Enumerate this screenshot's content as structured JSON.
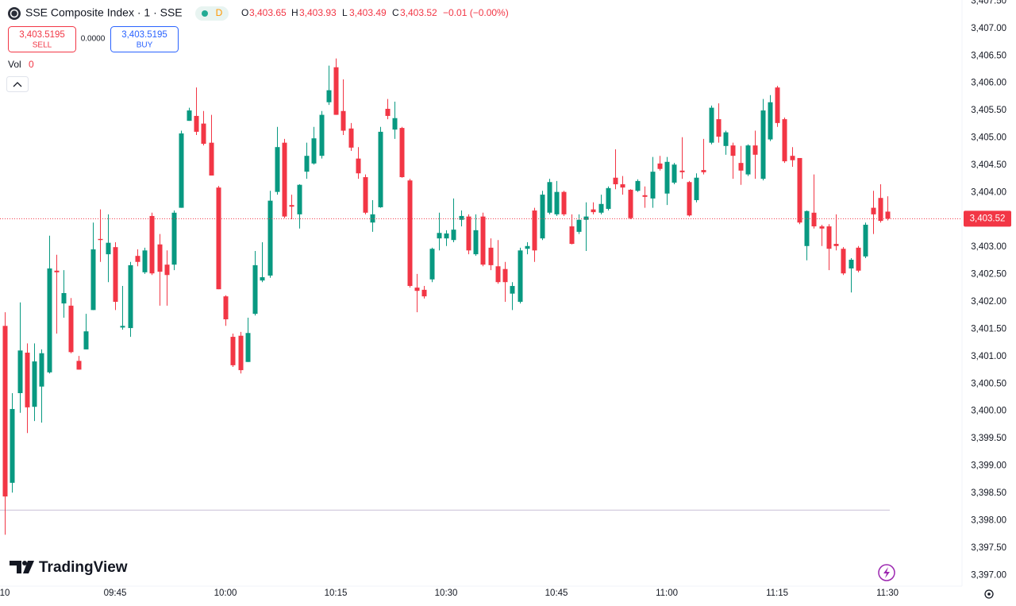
{
  "header": {
    "title": "SSE Composite Index · 1 · SSE",
    "badge": "D",
    "ohlc": [
      {
        "label": "O",
        "value": "3,403.65"
      },
      {
        "label": "H",
        "value": "3,403.93"
      },
      {
        "label": "L",
        "value": "3,403.49"
      },
      {
        "label": "C",
        "value": "3,403.52"
      }
    ],
    "change": "−0.01 (−0.00%)"
  },
  "trade": {
    "sell_price": "3,403.5195",
    "sell": "SELL",
    "spread": "0.0000",
    "buy_price": "3,403.5195",
    "buy": "BUY"
  },
  "volume": {
    "label": "Vol",
    "value": "0"
  },
  "brand": "TradingView",
  "chart_data": {
    "type": "candlestick",
    "up_color": "#089981",
    "down_color": "#f23645",
    "x": [
      570,
      571,
      572,
      573,
      574,
      575,
      576,
      577,
      578,
      579,
      580,
      581,
      582,
      583,
      584,
      585,
      586,
      587,
      588,
      589,
      590,
      591,
      592,
      593,
      594,
      595,
      596,
      597,
      598,
      599,
      600,
      601,
      602,
      603,
      604,
      605,
      606,
      607,
      608,
      609,
      610,
      611,
      612,
      613,
      614,
      615,
      616,
      617,
      618,
      619,
      620,
      621,
      622,
      623,
      624,
      625,
      626,
      627,
      628,
      629,
      630,
      631,
      632,
      633,
      634,
      635,
      636,
      637,
      638,
      639,
      640,
      641,
      642,
      643,
      644,
      645,
      646,
      647,
      648,
      649,
      650,
      651,
      652,
      653,
      654,
      655,
      656,
      657,
      658,
      659,
      660,
      661,
      662,
      663,
      664,
      665,
      666,
      667,
      668,
      669,
      670,
      671,
      672,
      673,
      674,
      675,
      676,
      677,
      678,
      679,
      680,
      681,
      682,
      683,
      684,
      685,
      686,
      687,
      688,
      689,
      690
    ],
    "open": [
      3401.56,
      3398.69,
      3400.33,
      3401.07,
      3400.08,
      3400.45,
      3400.71,
      3402.57,
      3401.97,
      3401.93,
      3400.92,
      3401.13,
      3401.85,
      3403.15,
      3402.87,
      3403.0,
      3401.53,
      3401.52,
      3402.84,
      3402.54,
      3403.57,
      3403.05,
      3402.68,
      3402.68,
      3403.72,
      3405.31,
      3405.4,
      3405.26,
      3404.91,
      3404.09,
      3402.1,
      3401.36,
      3401.38,
      3400.9,
      3401.78,
      3402.39,
      3402.48,
      3404.01,
      3404.91,
      3403.77,
      3403.6,
      3404.38,
      3404.53,
      3404.67,
      3405.65,
      3406.29,
      3405.49,
      3405.17,
      3404.62,
      3404.28,
      3403.45,
      3403.73,
      3405.53,
      3405.15,
      3405.18,
      3404.22,
      3402.26,
      3402.22,
      3402.41,
      3403.16,
      3403.16,
      3403.13,
      3403.5,
      3403.56,
      3402.87,
      3403.56,
      3402.99,
      3402.65,
      3402.6,
      3402.15,
      3402.0,
      3402.97,
      3403.67,
      3403.16,
      3403.63,
      3403.6,
      3404.01,
      3403.38,
      3403.28,
      3403.5,
      3403.69,
      3403.63,
      3403.7,
      3404.27,
      3404.15,
      3404.05,
      3404.03,
      3403.95,
      3403.89,
      3404.53,
      3403.98,
      3404.18,
      3404.4,
      3404.19,
      3403.86,
      3404.41,
      3404.91,
      3405.34,
      3404.85,
      3404.86,
      3404.54,
      3404.33,
      3404.86,
      3404.25,
      3404.97,
      3405.92,
      3405.34,
      3404.67,
      3404.63,
      3403.02,
      3403.63,
      3403.38,
      3403.38,
      3403.06,
      3402.97,
      3402.61,
      3402.99,
      3402.83,
      3403.72,
      3403.9,
      3403.65
    ],
    "high": [
      3401.81,
      3400.33,
      3401.99,
      3401.24,
      3401.24,
      3401.13,
      3403.21,
      3402.86,
      3402.58,
      3402.07,
      3401.01,
      3401.78,
      3403.45,
      3403.69,
      3403.6,
      3403.09,
      3402.29,
      3402.73,
      3402.96,
      3402.99,
      3403.63,
      3403.24,
      3402.94,
      3403.67,
      3405.13,
      3405.55,
      3405.92,
      3405.49,
      3405.42,
      3404.12,
      3402.12,
      3401.42,
      3401.45,
      3401.71,
      3402.93,
      3403.09,
      3404.03,
      3405.2,
      3404.98,
      3403.96,
      3404.15,
      3404.91,
      3405.2,
      3405.49,
      3406.32,
      3406.45,
      3406.07,
      3405.27,
      3404.83,
      3404.33,
      3403.86,
      3405.2,
      3405.71,
      3405.66,
      3405.2,
      3404.25,
      3402.51,
      3402.29,
      3402.99,
      3403.63,
      3403.31,
      3403.89,
      3403.67,
      3403.6,
      3403.6,
      3403.63,
      3403.16,
      3403.13,
      3402.73,
      3402.36,
      3402.99,
      3403.09,
      3403.72,
      3404.03,
      3404.25,
      3404.21,
      3404.03,
      3403.6,
      3403.6,
      3403.82,
      3403.82,
      3403.96,
      3404.11,
      3404.79,
      3404.3,
      3404.06,
      3404.24,
      3404.11,
      3404.65,
      3404.67,
      3404.65,
      3404.54,
      3405.01,
      3404.21,
      3404.35,
      3404.98,
      3405.59,
      3405.63,
      3405.13,
      3404.91,
      3404.85,
      3404.88,
      3405.13,
      3405.71,
      3405.78,
      3405.95,
      3405.37,
      3404.83,
      3404.63,
      3403.67,
      3404.33,
      3403.41,
      3403.42,
      3403.6,
      3403.0,
      3402.8,
      3403.02,
      3403.45,
      3404.03,
      3404.15,
      3403.93
    ],
    "low": [
      3397.74,
      3398.51,
      3399.97,
      3399.6,
      3399.82,
      3399.79,
      3400.69,
      3401.42,
      3401.71,
      3401.06,
      3400.76,
      3401.13,
      3401.85,
      3402.73,
      3402.36,
      3401.85,
      3401.49,
      3401.36,
      3402.65,
      3402.51,
      3402.49,
      3401.93,
      3401.93,
      3402.58,
      3403.72,
      3405.31,
      3405.05,
      3404.86,
      3404.31,
      3402.23,
      3401.56,
      3400.81,
      3400.69,
      3400.9,
      3401.75,
      3402.36,
      3402.44,
      3403.96,
      3403.53,
      3403.51,
      3403.34,
      3404.25,
      3404.51,
      3404.62,
      3405.6,
      3405.42,
      3405.05,
      3404.76,
      3404.25,
      3403.6,
      3403.28,
      3403.72,
      3405.34,
      3404.98,
      3404.27,
      3402.26,
      3401.81,
      3402.06,
      3402.36,
      3402.94,
      3403.02,
      3403.09,
      3403.38,
      3402.87,
      3402.84,
      3402.65,
      3402.58,
      3402.33,
      3402.0,
      3401.85,
      3401.97,
      3402.87,
      3402.73,
      3403.13,
      3403.6,
      3403.57,
      3403.57,
      3403.05,
      3403.24,
      3402.93,
      3403.6,
      3403.6,
      3403.67,
      3404.06,
      3403.96,
      3403.51,
      3404.01,
      3403.72,
      3403.72,
      3404.4,
      3403.77,
      3404.15,
      3404.25,
      3403.56,
      3403.82,
      3404.33,
      3404.88,
      3404.91,
      3404.69,
      3404.25,
      3404.14,
      3404.3,
      3404.25,
      3404.22,
      3404.94,
      3405.2,
      3404.54,
      3404.47,
      3403.42,
      3402.76,
      3403.34,
      3403.02,
      3402.58,
      3402.94,
      3402.49,
      3402.17,
      3402.54,
      3402.8,
      3403.24,
      3403.45,
      3403.49
    ],
    "close": [
      3398.44,
      3400.04,
      3401.11,
      3400.07,
      3400.91,
      3401.06,
      3402.61,
      3402.54,
      3402.16,
      3401.08,
      3400.76,
      3401.46,
      3402.96,
      3403.13,
      3403.08,
      3402.0,
      3401.56,
      3402.67,
      3402.73,
      3402.94,
      3402.52,
      3402.55,
      3402.49,
      3403.63,
      3405.08,
      3405.5,
      3405.11,
      3404.89,
      3404.31,
      3402.23,
      3401.68,
      3400.84,
      3400.75,
      3401.43,
      3402.67,
      3402.45,
      3403.85,
      3404.83,
      3403.56,
      3403.74,
      3404.14,
      3404.67,
      3404.99,
      3405.42,
      3405.87,
      3405.42,
      3405.13,
      3404.82,
      3404.35,
      3403.63,
      3403.6,
      3405.11,
      3405.4,
      3405.36,
      3404.28,
      3402.29,
      3402.2,
      3402.1,
      3402.97,
      3403.26,
      3403.25,
      3403.32,
      3403.57,
      3402.94,
      3403.31,
      3402.68,
      3402.67,
      3402.36,
      3402.36,
      3402.29,
      3402.94,
      3403.02,
      3402.94,
      3403.96,
      3404.19,
      3404.01,
      3403.6,
      3403.06,
      3403.5,
      3403.56,
      3403.64,
      3403.79,
      3404.08,
      3404.15,
      3404.09,
      3403.53,
      3404.21,
      3403.92,
      3404.38,
      3404.43,
      3404.56,
      3404.51,
      3404.37,
      3403.58,
      3404.27,
      3404.37,
      3405.55,
      3405.02,
      3405.1,
      3404.67,
      3404.4,
      3404.86,
      3404.69,
      3405.5,
      3405.65,
      3405.27,
      3404.57,
      3404.59,
      3403.45,
      3403.66,
      3403.38,
      3403.34,
      3402.97,
      3403.02,
      3402.52,
      3402.77,
      3402.57,
      3403.41,
      3403.6,
      3403.48,
      3403.52
    ],
    "last_price_label": "3,403.52",
    "baseline": 3398.19,
    "xlim": [
      569.35,
      699.92
    ],
    "xticks": [
      {
        "value": 570,
        "label": "10"
      },
      {
        "value": 585,
        "label": "09:45"
      },
      {
        "value": 600,
        "label": "10:00"
      },
      {
        "value": 615,
        "label": "10:15"
      },
      {
        "value": 630,
        "label": "10:30"
      },
      {
        "value": 645,
        "label": "10:45"
      },
      {
        "value": 660,
        "label": "11:00"
      },
      {
        "value": 675,
        "label": "11:15"
      },
      {
        "value": 690,
        "label": "11:30"
      }
    ],
    "ylim": [
      3396.8,
      3407.52
    ],
    "yticks": [
      {
        "value": 3397,
        "label": "3,397.00"
      },
      {
        "value": 3397.5,
        "label": "3,397.50"
      },
      {
        "value": 3398,
        "label": "3,398.00"
      },
      {
        "value": 3398.5,
        "label": "3,398.50"
      },
      {
        "value": 3399,
        "label": "3,399.00"
      },
      {
        "value": 3399.5,
        "label": "3,399.50"
      },
      {
        "value": 3400,
        "label": "3,400.00"
      },
      {
        "value": 3400.5,
        "label": "3,400.50"
      },
      {
        "value": 3401,
        "label": "3,401.00"
      },
      {
        "value": 3401.5,
        "label": "3,401.50"
      },
      {
        "value": 3402,
        "label": "3,402.00"
      },
      {
        "value": 3402.5,
        "label": "3,402.50"
      },
      {
        "value": 3403,
        "label": "3,403.00"
      },
      {
        "value": 3403.5,
        "label": "3,403.50"
      },
      {
        "value": 3404,
        "label": "3,404.00"
      },
      {
        "value": 3404.5,
        "label": "3,404.50"
      },
      {
        "value": 3405,
        "label": "3,405.00"
      },
      {
        "value": 3405.5,
        "label": "3,405.50"
      },
      {
        "value": 3406,
        "label": "3,406.00"
      },
      {
        "value": 3406.5,
        "label": "3,406.50"
      },
      {
        "value": 3407,
        "label": "3,407.00"
      },
      {
        "value": 3407.5,
        "label": "3,407.50"
      }
    ],
    "grid": false
  }
}
